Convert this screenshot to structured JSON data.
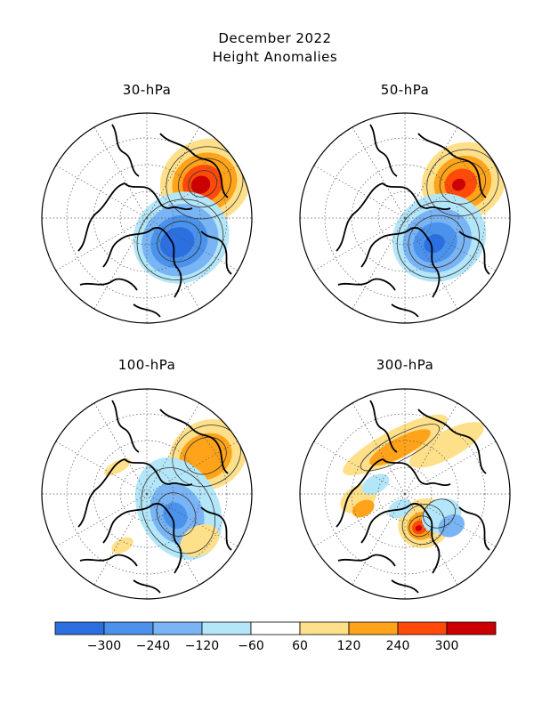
{
  "title": "December 2022",
  "subtitle": "Height Anomalies",
  "panels": [
    {
      "label": "30-hPa"
    },
    {
      "label": "50-hPa"
    },
    {
      "label": "100-hPa"
    },
    {
      "label": "300-hPa"
    }
  ],
  "colorbar": {
    "colors": [
      "#2b6fe0",
      "#4a92ec",
      "#79b4f5",
      "#b4e6f9",
      "#ffffff",
      "#ffe08a",
      "#ffa31a",
      "#ff4a0a",
      "#cc0000"
    ],
    "tick_labels": [
      "−300",
      "−240",
      "−120",
      "−60",
      "60",
      "120",
      "240",
      "300"
    ]
  }
}
